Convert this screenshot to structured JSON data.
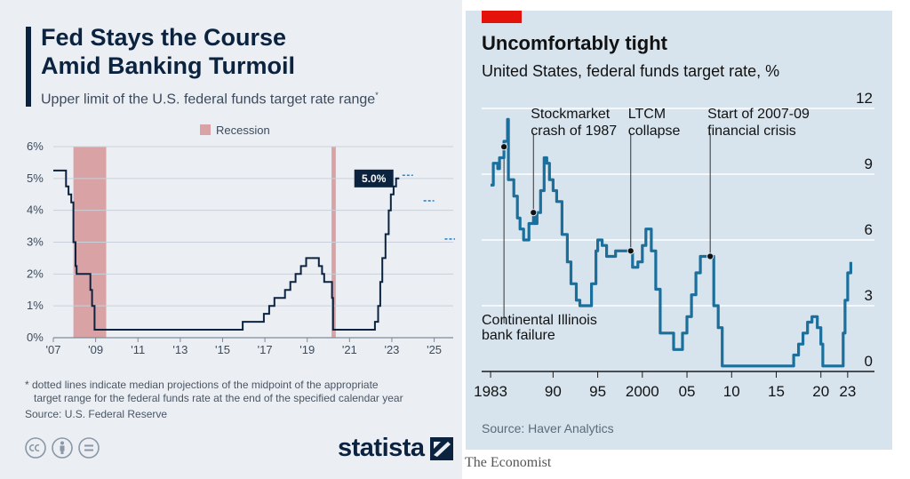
{
  "statista": {
    "title_line1": "Fed Stays the Course",
    "title_line2": "Amid Banking Turmoil",
    "subtitle": "Upper limit of the U.S. federal funds target rate range",
    "subtitle_mark": "*",
    "footnote_line1": "* dotted lines indicate median projections of the midpoint of the appropriate",
    "footnote_line2": "target range for the federal funds rate at the end of the specified calendar year",
    "source": "Source: U.S. Federal Reserve",
    "logo_text": "statista",
    "colors": {
      "line": "#0c2340",
      "recession": "#d9a3a6",
      "projection": "#1f8ad6",
      "panel": "#ebeff4"
    }
  },
  "economist": {
    "title": "Uncomfortably tight",
    "subtitle": "United States, federal funds target rate, %",
    "source": "Source: Haver Analytics",
    "brand": "The Economist",
    "colors": {
      "line": "#1a6f9c",
      "panel": "#d7e4ee",
      "accent": "#e3120b"
    }
  },
  "chart_data": [
    {
      "type": "line",
      "legend": [
        "Recession"
      ],
      "legend_position": "top-center",
      "grid": true,
      "xlim": [
        2007.0,
        2025.9
      ],
      "ylim": [
        0,
        6
      ],
      "y_ticks": [
        {
          "v": 0,
          "label": "0%"
        },
        {
          "v": 1,
          "label": "1%"
        },
        {
          "v": 2,
          "label": "2%"
        },
        {
          "v": 3,
          "label": "3%"
        },
        {
          "v": 4,
          "label": "4%"
        },
        {
          "v": 5,
          "label": "5%"
        },
        {
          "v": 6,
          "label": "6%"
        }
      ],
      "x_ticks": [
        {
          "v": 2007,
          "label": "'07"
        },
        {
          "v": 2009,
          "label": "'09"
        },
        {
          "v": 2011,
          "label": "'11"
        },
        {
          "v": 2013,
          "label": "'13"
        },
        {
          "v": 2015,
          "label": "'15"
        },
        {
          "v": 2017,
          "label": "'17"
        },
        {
          "v": 2019,
          "label": "'19"
        },
        {
          "v": 2021,
          "label": "'21"
        },
        {
          "v": 2023,
          "label": "'23"
        },
        {
          "v": 2025,
          "label": "'25"
        }
      ],
      "recessions": [
        [
          2007.95,
          2009.5
        ],
        [
          2020.15,
          2020.35
        ]
      ],
      "annotation": {
        "x": 2023.2,
        "y": 5.0,
        "label": "5.0%"
      },
      "series": [
        {
          "x": [
            2007.0,
            2007.6,
            2007.6,
            2007.72,
            2007.72,
            2007.85,
            2007.85,
            2007.95,
            2007.95,
            2008.05,
            2008.05,
            2008.1,
            2008.1,
            2008.22,
            2008.22,
            2008.33,
            2008.33,
            2008.75,
            2008.75,
            2008.83,
            2008.83,
            2008.95,
            2008.95,
            2015.95,
            2015.95,
            2016.95,
            2016.95,
            2017.2,
            2017.2,
            2017.45,
            2017.45,
            2017.95,
            2017.95,
            2018.2,
            2018.2,
            2018.45,
            2018.45,
            2018.7,
            2018.7,
            2018.95,
            2018.95,
            2019.55,
            2019.55,
            2019.7,
            2019.7,
            2019.8,
            2019.8,
            2020.17,
            2020.17,
            2020.22,
            2020.22,
            2022.2,
            2022.2,
            2022.35,
            2022.35,
            2022.45,
            2022.45,
            2022.55,
            2022.55,
            2022.7,
            2022.7,
            2022.85,
            2022.85,
            2022.95,
            2022.95,
            2023.08,
            2023.08,
            2023.2,
            2023.2,
            2023.35
          ],
          "y": [
            5.25,
            5.25,
            4.75,
            4.75,
            4.5,
            4.5,
            4.25,
            4.25,
            3.0,
            3.0,
            2.25,
            2.25,
            2.0,
            2.0,
            2.0,
            2.0,
            2.0,
            2.0,
            1.5,
            1.5,
            1.0,
            1.0,
            0.25,
            0.25,
            0.5,
            0.5,
            0.75,
            0.75,
            1.0,
            1.0,
            1.25,
            1.25,
            1.5,
            1.5,
            1.75,
            1.75,
            2.0,
            2.0,
            2.25,
            2.25,
            2.5,
            2.5,
            2.25,
            2.25,
            2.0,
            2.0,
            1.75,
            1.75,
            1.25,
            1.25,
            0.25,
            0.25,
            0.5,
            0.5,
            1.0,
            1.0,
            1.75,
            1.75,
            2.5,
            2.5,
            3.25,
            3.25,
            4.0,
            4.0,
            4.5,
            4.5,
            4.75,
            4.75,
            5.0,
            5.0
          ]
        }
      ],
      "projections": [
        {
          "x": [
            2023.5,
            2024.0
          ],
          "y": 5.1
        },
        {
          "x": [
            2024.5,
            2025.0
          ],
          "y": 4.3
        },
        {
          "x": [
            2025.5,
            2026.0
          ],
          "y": 3.1
        }
      ]
    },
    {
      "type": "line",
      "y_axis_side": "right",
      "grid": true,
      "xlim": [
        1982.0,
        2026.0
      ],
      "ylim": [
        0,
        12
      ],
      "y_ticks": [
        {
          "v": 0,
          "label": "0"
        },
        {
          "v": 3,
          "label": "3"
        },
        {
          "v": 6,
          "label": "6"
        },
        {
          "v": 9,
          "label": "9"
        },
        {
          "v": 12,
          "label": "12"
        }
      ],
      "x_ticks": [
        {
          "v": 1983,
          "label": "1983"
        },
        {
          "v": 1990,
          "label": "90"
        },
        {
          "v": 1995,
          "label": "95"
        },
        {
          "v": 2000,
          "label": "2000"
        },
        {
          "v": 2005,
          "label": "05"
        },
        {
          "v": 2010,
          "label": "10"
        },
        {
          "v": 2015,
          "label": "15"
        },
        {
          "v": 2020,
          "label": "20"
        },
        {
          "v": 2023,
          "label": "23"
        }
      ],
      "annotations": [
        {
          "x": 1984.5,
          "y": 10.25,
          "label_lines": [
            "Continental Illinois",
            "bank failure"
          ],
          "position": "below"
        },
        {
          "x": 1987.8,
          "y": 7.25,
          "label_lines": [
            "Stockmarket",
            "crash of 1987"
          ],
          "position": "above"
        },
        {
          "x": 1998.7,
          "y": 5.5,
          "label_lines": [
            "LTCM",
            "collapse"
          ],
          "position": "above"
        },
        {
          "x": 2007.6,
          "y": 5.25,
          "label_lines": [
            "Start of 2007-09",
            "financial crisis"
          ],
          "position": "above"
        }
      ],
      "series": [
        {
          "x": [
            1983.0,
            1983.3,
            1983.8,
            1984.0,
            1984.5,
            1984.9,
            1985.0,
            1985.6,
            1986.0,
            1986.3,
            1986.7,
            1987.0,
            1987.3,
            1987.8,
            1987.9,
            1988.2,
            1988.6,
            1989.0,
            1989.3,
            1989.6,
            1990.0,
            1990.4,
            1991.0,
            1991.6,
            1992.0,
            1992.6,
            1993.0,
            1994.0,
            1994.3,
            1994.8,
            1995.0,
            1995.5,
            1996.0,
            1997.0,
            1998.7,
            1998.9,
            1999.5,
            2000.0,
            2000.4,
            2001.0,
            2001.5,
            2002.0,
            2003.5,
            2004.0,
            2004.5,
            2005.0,
            2005.5,
            2006.0,
            2006.5,
            2007.6,
            2008.0,
            2008.5,
            2008.95,
            2015.95,
            2016.95,
            2017.5,
            2018.0,
            2018.5,
            2019.0,
            2019.6,
            2020.0,
            2020.22,
            2022.2,
            2022.5,
            2022.7,
            2023.0,
            2023.35
          ],
          "y": [
            8.5,
            9.5,
            9.25,
            9.75,
            10.5,
            11.5,
            8.75,
            8.0,
            7.0,
            6.5,
            6.0,
            6.0,
            6.75,
            7.25,
            6.75,
            7.25,
            8.25,
            9.75,
            9.5,
            8.75,
            8.25,
            7.75,
            6.25,
            5.0,
            4.0,
            3.25,
            3.0,
            3.0,
            4.0,
            5.5,
            6.0,
            5.75,
            5.25,
            5.5,
            5.5,
            4.75,
            5.0,
            5.75,
            6.5,
            5.5,
            3.75,
            1.75,
            1.0,
            1.0,
            1.75,
            2.5,
            3.5,
            4.5,
            5.25,
            5.25,
            3.0,
            2.0,
            0.25,
            0.25,
            0.75,
            1.25,
            1.75,
            2.25,
            2.5,
            2.0,
            1.25,
            0.25,
            0.25,
            1.75,
            3.25,
            4.5,
            5.0
          ]
        }
      ]
    }
  ]
}
